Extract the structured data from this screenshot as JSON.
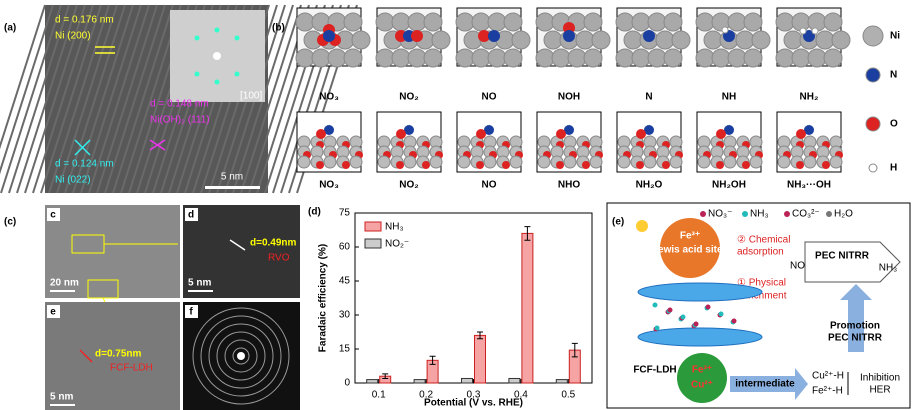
{
  "panel_a": {
    "label": "(a)",
    "d1": "d = 0.176 nm",
    "plane1": "Ni (200)",
    "zone": "[100]",
    "d2": "d = 0.148 nm",
    "plane2": "Ni(OH)₂ (111)",
    "d3": "d = 0.124 nm",
    "plane3": "Ni (022)",
    "scale": "5 nm"
  },
  "panel_b": {
    "label": "(b)",
    "top_labels": [
      "NO₃",
      "NO₂",
      "NO",
      "NOH",
      "N",
      "NH",
      "NH₂"
    ],
    "bottom_labels": [
      "NO₃",
      "NO₂",
      "NO",
      "NHO",
      "NH₂O",
      "NH₂OH",
      "NH₃···OH"
    ],
    "legend": [
      "Ni",
      "N",
      "O",
      "H"
    ]
  },
  "panel_c": {
    "label": "(c)",
    "sub_labels": [
      "c",
      "d",
      "e",
      "f"
    ],
    "scales": [
      "20 nm",
      "5 nm",
      "5 nm"
    ],
    "d1": "d=0.49nm",
    "name1": "RVO",
    "d2": "d=0.75nm",
    "name2": "FCF-LDH"
  },
  "chart_data": {
    "type": "bar",
    "panel_label": "(d)",
    "categories": [
      "0.1",
      "0.2",
      "0.3",
      "0.4",
      "0.5"
    ],
    "series": [
      {
        "name": "NH₃",
        "color": "#f6a3a3",
        "values": [
          3,
          10,
          21,
          66,
          14.5
        ],
        "errors": [
          1,
          1.8,
          1.5,
          3,
          3
        ]
      },
      {
        "name": "NO₂⁻",
        "color": "#cccccc",
        "values": [
          1.5,
          1.5,
          2,
          2,
          1.5
        ]
      }
    ],
    "ylim": [
      0,
      75
    ],
    "yticks": [
      0,
      15,
      30,
      45,
      60,
      75
    ],
    "xlabel": "Potential (V vs. RHE)",
    "ylabel": "Faradaic efficiency (%)"
  },
  "panel_e": {
    "label": "(e)",
    "legend": [
      "NO₃⁻",
      "NH₃",
      "CO₃²⁻",
      "H₂O"
    ],
    "sphere1": [
      "Fe³⁺",
      "Lewis acid sites"
    ],
    "chem": [
      "② Chemical",
      "adsorption"
    ],
    "phys": [
      "① Physical",
      "enrichment"
    ],
    "no3": "NO₃⁻",
    "box": "PEC NITRR",
    "nh3": "NH₃",
    "promotion": [
      "Promotion",
      "PEC NITRR"
    ],
    "ldh": "FCF-LDH",
    "sphere2": [
      "Fe³⁺",
      "Cu²⁺"
    ],
    "intermediate": "intermediate",
    "hydrides": [
      "Cu²⁺-H",
      "Fe²⁺-H"
    ],
    "inhibition": [
      "Inhibition",
      "HER"
    ]
  }
}
